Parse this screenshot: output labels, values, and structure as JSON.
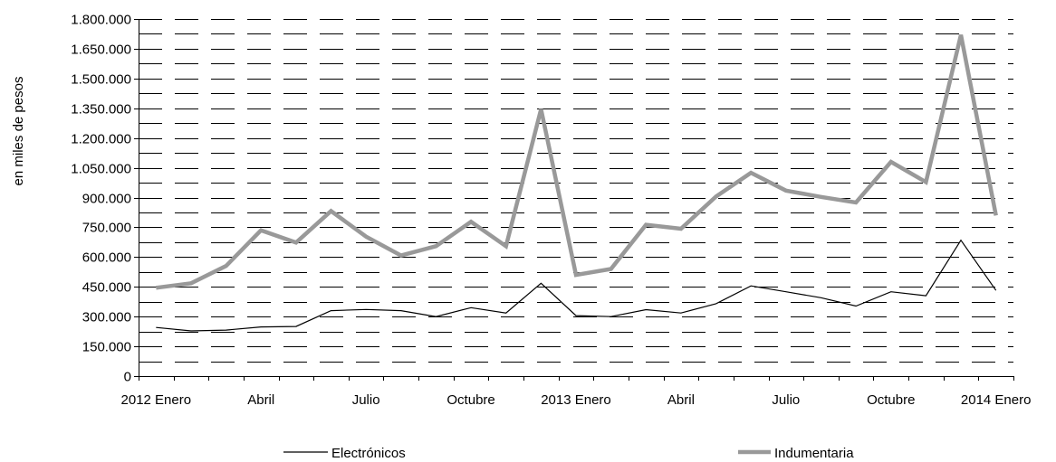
{
  "chart_data": {
    "type": "line",
    "ylabel": "en miles de pesos",
    "ylim": [
      0,
      1800000
    ],
    "yticks": [
      0,
      150000,
      300000,
      450000,
      600000,
      750000,
      900000,
      1050000,
      1200000,
      1350000,
      1500000,
      1650000,
      1800000
    ],
    "ytick_labels": [
      "0",
      "150.000",
      "300.000",
      "450.000",
      "600.000",
      "750.000",
      "900.000",
      "1.050.000",
      "1.200.000",
      "1.350.000",
      "1.500.000",
      "1.650.000",
      "1.800.000"
    ],
    "x": [
      "2012-01",
      "2012-02",
      "2012-03",
      "2012-04",
      "2012-05",
      "2012-06",
      "2012-07",
      "2012-08",
      "2012-09",
      "2012-10",
      "2012-11",
      "2012-12",
      "2013-01",
      "2013-02",
      "2013-03",
      "2013-04",
      "2013-05",
      "2013-06",
      "2013-07",
      "2013-08",
      "2013-09",
      "2013-10",
      "2013-11",
      "2013-12",
      "2014-01"
    ],
    "xtick_labels": [
      {
        "index": 0,
        "label": "2012 Enero"
      },
      {
        "index": 3,
        "label": "Abril"
      },
      {
        "index": 6,
        "label": "Julio"
      },
      {
        "index": 9,
        "label": "Octubre"
      },
      {
        "index": 12,
        "label": "2013 Enero"
      },
      {
        "index": 15,
        "label": "Abril"
      },
      {
        "index": 18,
        "label": "Julio"
      },
      {
        "index": 21,
        "label": "Octubre"
      },
      {
        "index": 24,
        "label": "2014 Enero"
      }
    ],
    "grid": true,
    "legend_position": "bottom",
    "series": [
      {
        "name": "Electrónicos",
        "color": "#000000",
        "values": [
          245000,
          228000,
          232000,
          248000,
          250000,
          330000,
          336000,
          330000,
          300000,
          345000,
          318000,
          468000,
          305000,
          300000,
          335000,
          318000,
          365000,
          455000,
          425000,
          395000,
          353000,
          425000,
          405000,
          685000,
          432000
        ]
      },
      {
        "name": "Indumentaria",
        "color": "#999999",
        "values": [
          445000,
          468000,
          555000,
          735000,
          673000,
          832000,
          703000,
          608000,
          655000,
          778000,
          655000,
          1345000,
          510000,
          540000,
          763000,
          743000,
          905000,
          1025000,
          935000,
          903000,
          875000,
          1080000,
          978000,
          1720000,
          810000
        ]
      }
    ]
  }
}
